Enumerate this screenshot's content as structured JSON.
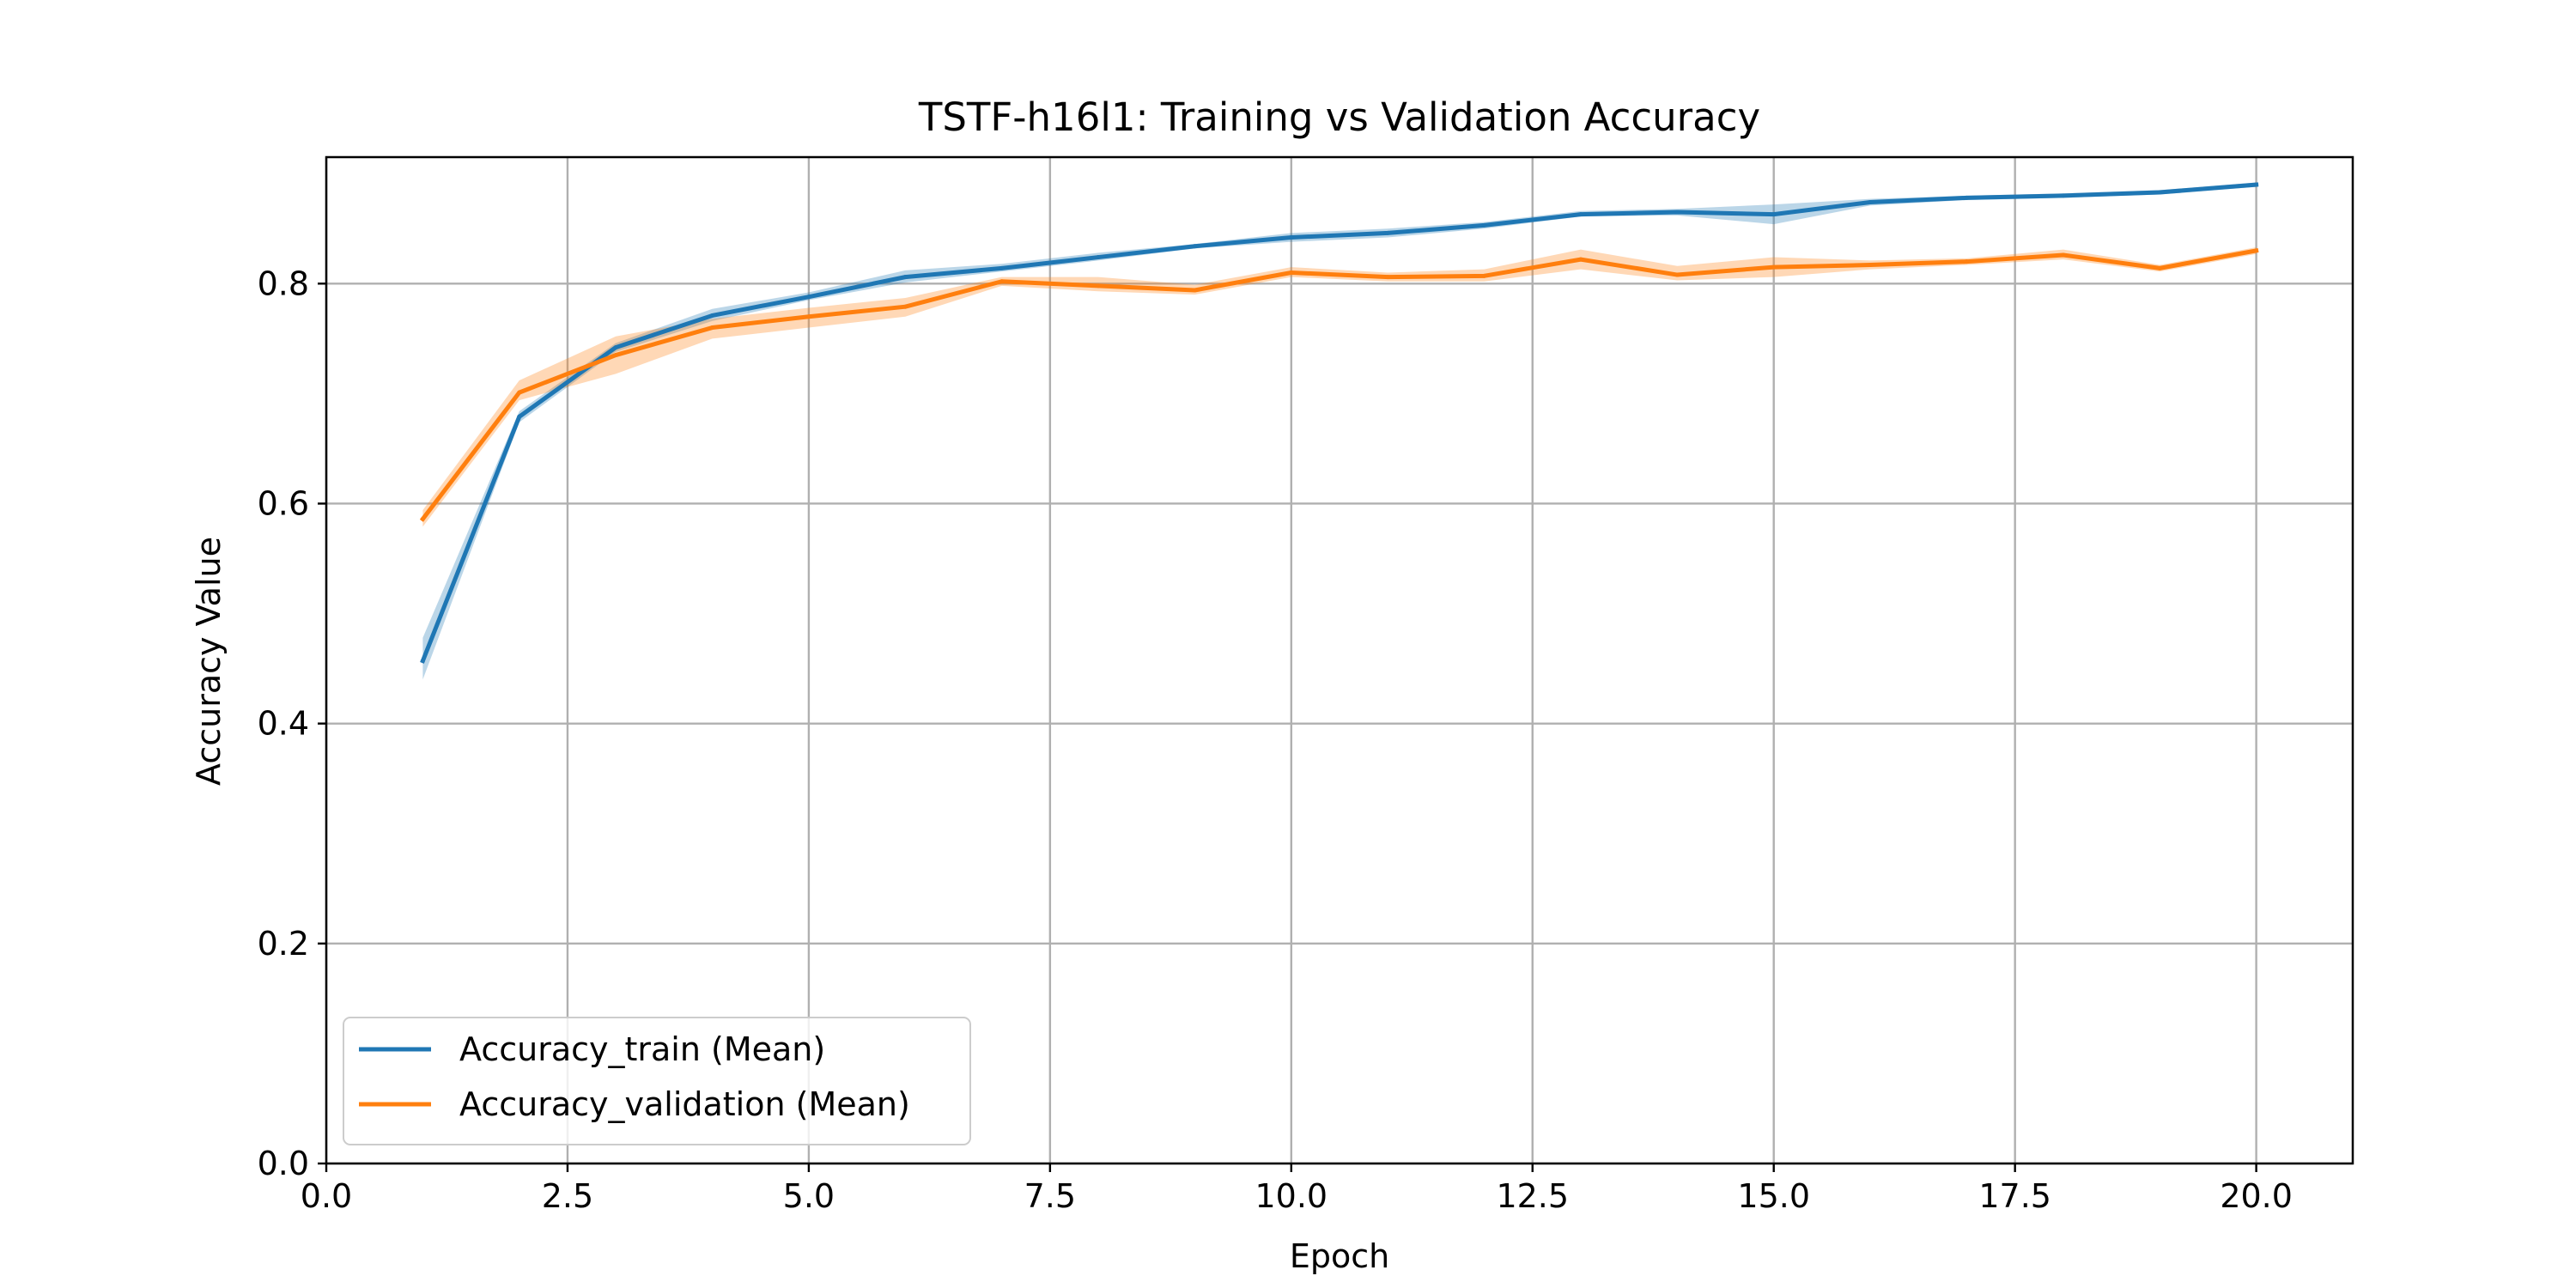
{
  "chart_data": {
    "type": "line",
    "title": "TSTF-h16l1: Training vs Validation Accuracy",
    "xlabel": "Epoch",
    "ylabel": "Accuracy Value",
    "xlim": [
      0,
      21
    ],
    "ylim": [
      0,
      0.915
    ],
    "xticks": [
      0.0,
      2.5,
      5.0,
      7.5,
      10.0,
      12.5,
      15.0,
      17.5,
      20.0
    ],
    "xtick_labels": [
      "0.0",
      "2.5",
      "5.0",
      "7.5",
      "10.0",
      "12.5",
      "15.0",
      "17.5",
      "20.0"
    ],
    "yticks": [
      0.0,
      0.2,
      0.4,
      0.6,
      0.8
    ],
    "ytick_labels": [
      "0.0",
      "0.2",
      "0.4",
      "0.6",
      "0.8"
    ],
    "grid": true,
    "legend_position": "lower-left",
    "x": [
      1,
      2,
      3,
      4,
      5,
      6,
      7,
      8,
      9,
      10,
      11,
      12,
      13,
      14,
      15,
      16,
      17,
      18,
      19,
      20
    ],
    "series": [
      {
        "name": "Accuracy_train (Mean)",
        "color": "#1f77b4",
        "values": [
          0.457,
          0.679,
          0.742,
          0.771,
          0.788,
          0.806,
          0.814,
          0.824,
          0.834,
          0.842,
          0.846,
          0.853,
          0.863,
          0.865,
          0.863,
          0.874,
          0.878,
          0.88,
          0.883,
          0.89
        ],
        "band_lower": [
          0.44,
          0.674,
          0.738,
          0.766,
          0.785,
          0.801,
          0.811,
          0.821,
          0.832,
          0.838,
          0.842,
          0.85,
          0.861,
          0.862,
          0.854,
          0.871,
          0.876,
          0.878,
          0.881,
          0.888
        ],
        "band_upper": [
          0.478,
          0.684,
          0.746,
          0.777,
          0.792,
          0.812,
          0.818,
          0.828,
          0.836,
          0.846,
          0.85,
          0.856,
          0.866,
          0.868,
          0.872,
          0.877,
          0.88,
          0.882,
          0.885,
          0.892
        ]
      },
      {
        "name": "Accuracy_validation (Mean)",
        "color": "#ff7f0e",
        "values": [
          0.586,
          0.701,
          0.735,
          0.76,
          0.77,
          0.779,
          0.802,
          0.798,
          0.794,
          0.81,
          0.806,
          0.807,
          0.822,
          0.808,
          0.815,
          0.817,
          0.82,
          0.826,
          0.814,
          0.83
        ],
        "band_lower": [
          0.579,
          0.694,
          0.718,
          0.75,
          0.76,
          0.77,
          0.798,
          0.793,
          0.79,
          0.806,
          0.802,
          0.802,
          0.813,
          0.803,
          0.806,
          0.813,
          0.817,
          0.822,
          0.811,
          0.827
        ],
        "band_upper": [
          0.594,
          0.712,
          0.752,
          0.768,
          0.778,
          0.787,
          0.806,
          0.806,
          0.799,
          0.815,
          0.81,
          0.813,
          0.831,
          0.816,
          0.824,
          0.821,
          0.823,
          0.831,
          0.817,
          0.833
        ]
      }
    ]
  }
}
